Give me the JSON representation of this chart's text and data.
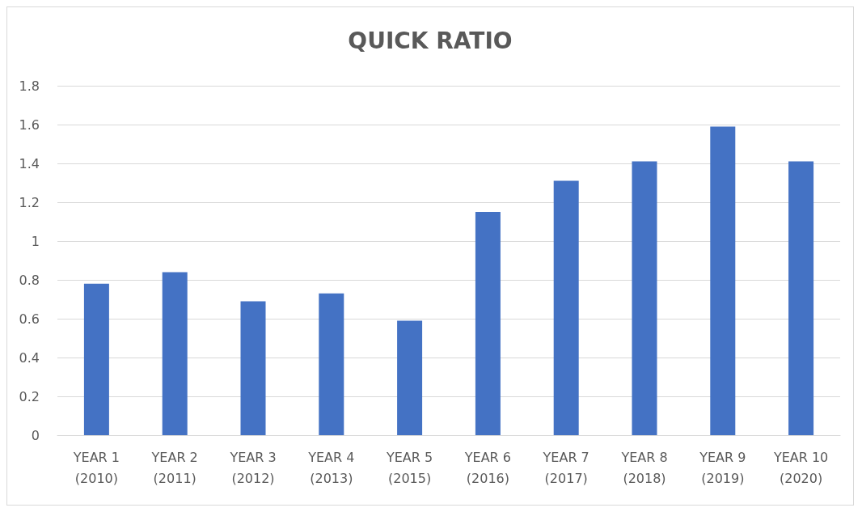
{
  "chart_data": {
    "type": "bar",
    "title": "QUICK RATIO",
    "categories": [
      "YEAR 1\n(2010)",
      "YEAR 2\n(2011)",
      "YEAR 3\n(2012)",
      "YEAR 4\n(2013)",
      "YEAR 5\n(2015)",
      "YEAR 6\n(2016)",
      "YEAR 7\n(2017)",
      "YEAR 8\n(2018)",
      "YEAR 9\n(2019)",
      "YEAR 10\n(2020)"
    ],
    "values": [
      0.78,
      0.84,
      0.69,
      0.73,
      0.59,
      1.15,
      1.31,
      1.41,
      1.59,
      1.41
    ],
    "color": "#4472c4",
    "ylim": [
      0,
      1.8
    ],
    "yticks": [
      0,
      0.2,
      0.4,
      0.6,
      0.8,
      1,
      1.2,
      1.4,
      1.6,
      1.8
    ],
    "grid": "y"
  }
}
